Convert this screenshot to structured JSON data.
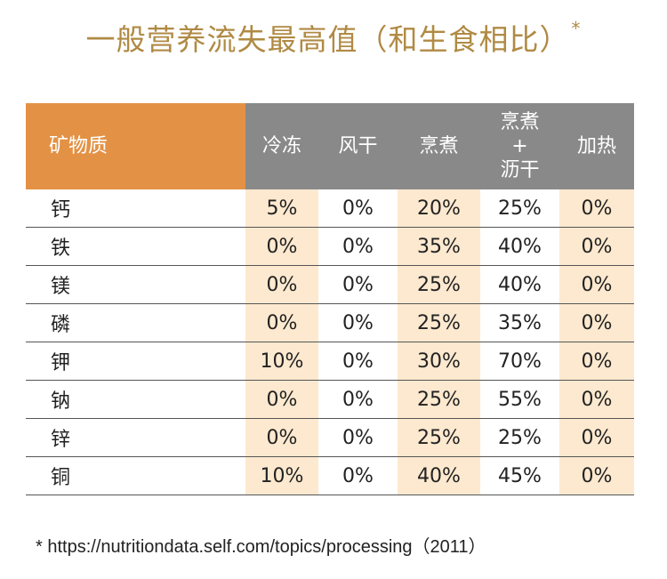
{
  "title": {
    "text": "一般营养流失最高值（和生食相比）",
    "asterisk": "*"
  },
  "table": {
    "headers": {
      "mineral": "矿物质",
      "freeze": "冷冻",
      "dry": "风干",
      "cook": "烹煮",
      "cook_drain_line1": "烹煮",
      "cook_drain_line2": "+",
      "cook_drain_line3": "沥干",
      "heat": "加热"
    },
    "rows": [
      {
        "mineral": "钙",
        "freeze": "5%",
        "dry": "0%",
        "cook": "20%",
        "cook_drain": "25%",
        "heat": "0%"
      },
      {
        "mineral": "铁",
        "freeze": "0%",
        "dry": "0%",
        "cook": "35%",
        "cook_drain": "40%",
        "heat": "0%"
      },
      {
        "mineral": "镁",
        "freeze": "0%",
        "dry": "0%",
        "cook": "25%",
        "cook_drain": "40%",
        "heat": "0%"
      },
      {
        "mineral": "磷",
        "freeze": "0%",
        "dry": "0%",
        "cook": "25%",
        "cook_drain": "35%",
        "heat": "0%"
      },
      {
        "mineral": "钾",
        "freeze": "10%",
        "dry": "0%",
        "cook": "30%",
        "cook_drain": "70%",
        "heat": "0%"
      },
      {
        "mineral": "钠",
        "freeze": "0%",
        "dry": "0%",
        "cook": "25%",
        "cook_drain": "55%",
        "heat": "0%"
      },
      {
        "mineral": "锌",
        "freeze": "0%",
        "dry": "0%",
        "cook": "25%",
        "cook_drain": "25%",
        "heat": "0%"
      },
      {
        "mineral": "铜",
        "freeze": "10%",
        "dry": "0%",
        "cook": "40%",
        "cook_drain": "45%",
        "heat": "0%"
      }
    ]
  },
  "footnote": "* https://nutritiondata.self.com/topics/processing（2011）",
  "colors": {
    "title": "#b08a44",
    "header_mineral_bg": "#e39245",
    "header_bg": "#898989",
    "highlight_cell": "#fde9cf"
  }
}
